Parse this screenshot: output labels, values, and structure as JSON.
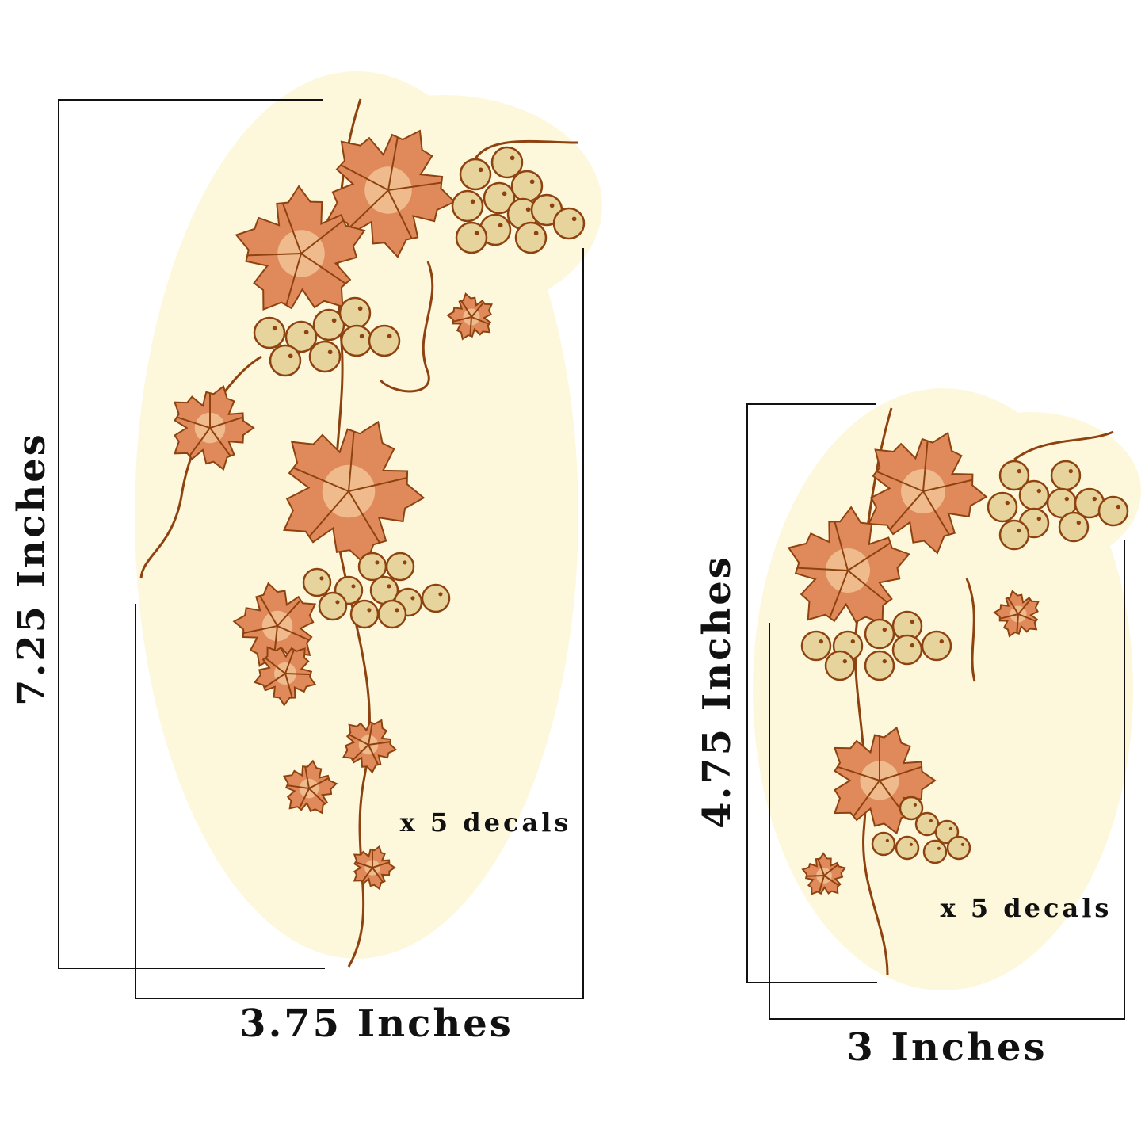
{
  "large_decal": {
    "height_label": "7.25 Inches",
    "width_label": "3.75 Inches",
    "quantity_label": "x 5 decals"
  },
  "small_decal": {
    "height_label": "4.75 Inches",
    "width_label": "3 Inches",
    "quantity_label": "x 5 decals"
  },
  "colors": {
    "leaf": "#e08a5c",
    "leaf_highlight": "#f3c79a",
    "grape": "#e6d49c",
    "outline": "#8e4210",
    "glow": "#fdf8dc",
    "bracket": "#111111"
  }
}
